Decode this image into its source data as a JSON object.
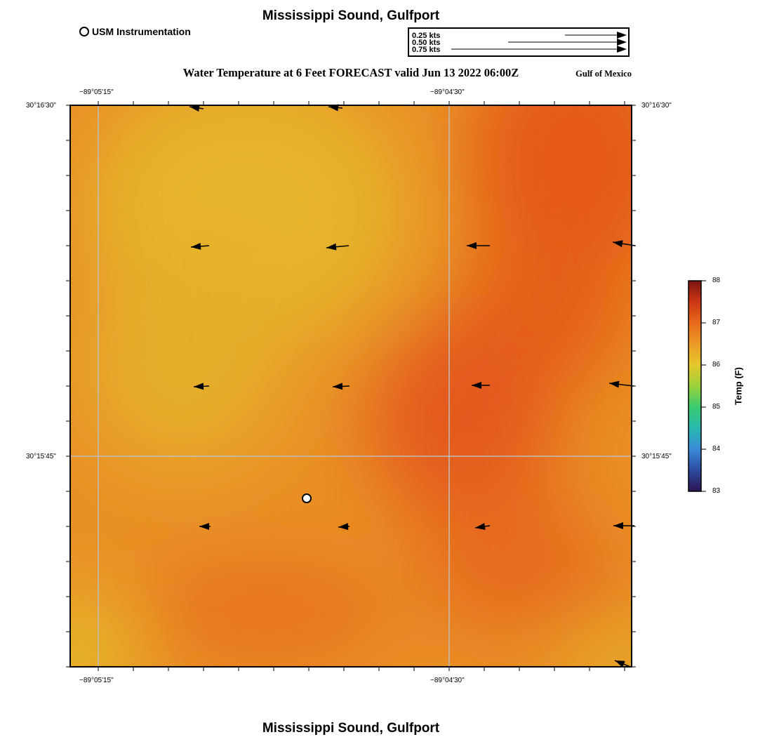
{
  "header": {
    "title": "Mississippi Sound, Gulfport",
    "subtitle": "Water Temperature at 6 Feet FORECAST valid Jun 13 2022 06:00Z",
    "region_label": "Gulf of Mexico"
  },
  "footer": {
    "title": "Mississippi Sound, Gulfport"
  },
  "station_legend": {
    "label": "USM Instrumentation",
    "marker": "open-circle"
  },
  "vector_legend": {
    "entries": [
      {
        "label": "0.25 kts",
        "speed": 0.25
      },
      {
        "label": "0.50 kts",
        "speed": 0.5
      },
      {
        "label": "0.75 kts",
        "speed": 0.75
      }
    ]
  },
  "axes": {
    "lon_labels": [
      "−89°05'15\"",
      "−89°04'30\""
    ],
    "lat_labels": [
      "30°16'30\"",
      "30°15'45\""
    ]
  },
  "colorbar": {
    "label": "Temp (F)",
    "min": 83,
    "max": 88,
    "ticks": [
      "88",
      "87",
      "86",
      "85",
      "84",
      "83"
    ]
  },
  "colors": {
    "temp_low": "#e6b62c",
    "temp_mid": "#ea8a24",
    "temp_high": "#e45a14",
    "grid": "#bdbdbd"
  }
}
